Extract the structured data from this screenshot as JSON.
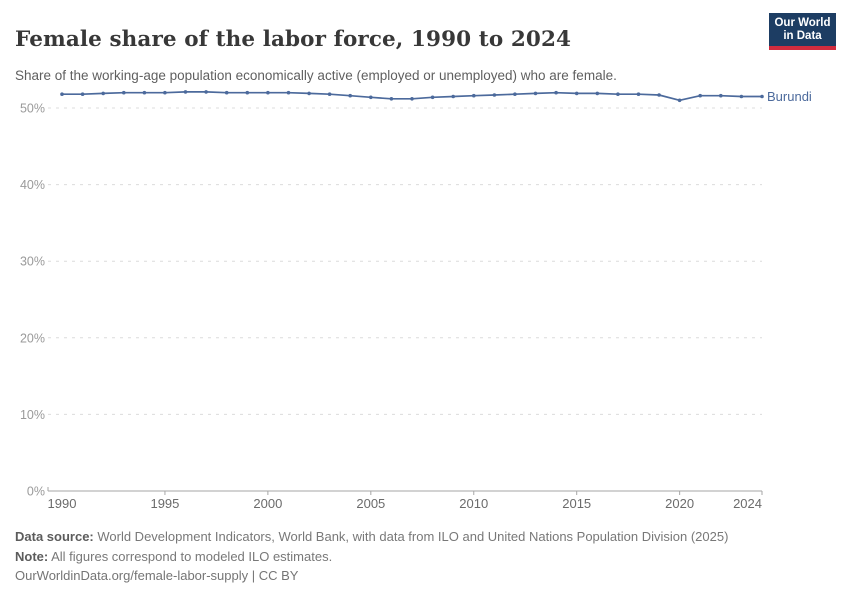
{
  "header": {
    "title": "Female share of the labor force, 1990 to 2024",
    "subtitle": "Share of the working-age population economically active (employed or unemployed) who are female.",
    "logo": {
      "line1": "Our World",
      "line2": "in Data",
      "bg_color": "#1d3d63",
      "stripe_color": "#d12c3e"
    }
  },
  "chart_data": {
    "type": "line",
    "title": "Female share of the labor force, 1990 to 2024",
    "xlabel": "",
    "ylabel": "",
    "xlim": [
      1990,
      2024
    ],
    "ylim": [
      0,
      53
    ],
    "grid": "dashed horizontal",
    "legend_position": "end-of-line label",
    "x_ticks": [
      1990,
      1995,
      2000,
      2005,
      2010,
      2015,
      2020,
      2024
    ],
    "y_ticks": [
      0,
      10,
      20,
      30,
      40,
      50
    ],
    "y_tick_suffix": "%",
    "series": [
      {
        "name": "Burundi",
        "color": "#4c6a9c",
        "x": [
          1990,
          1991,
          1992,
          1993,
          1994,
          1995,
          1996,
          1997,
          1998,
          1999,
          2000,
          2001,
          2002,
          2003,
          2004,
          2005,
          2006,
          2007,
          2008,
          2009,
          2010,
          2011,
          2012,
          2013,
          2014,
          2015,
          2016,
          2017,
          2018,
          2019,
          2020,
          2021,
          2022,
          2023,
          2024
        ],
        "values": [
          51.8,
          51.8,
          51.9,
          52.0,
          52.0,
          52.0,
          52.1,
          52.1,
          52.0,
          52.0,
          52.0,
          52.0,
          51.9,
          51.8,
          51.6,
          51.4,
          51.2,
          51.2,
          51.4,
          51.5,
          51.6,
          51.7,
          51.8,
          51.9,
          52.0,
          51.9,
          51.9,
          51.8,
          51.8,
          51.7,
          51.0,
          51.6,
          51.6,
          51.5,
          51.5
        ]
      }
    ],
    "colors": {
      "gridline": "#dcdcdc",
      "axis": "#a6a6a6",
      "y_tick_label": "#9a9a9a",
      "x_tick_label": "#6b6b6b"
    }
  },
  "footer": {
    "data_source_label": "Data source:",
    "data_source_text": " World Development Indicators, World Bank, with data from ILO and United Nations Population Division (2025)",
    "note_label": "Note:",
    "note_text": " All figures correspond to modeled ILO estimates.",
    "link_text": "OurWorldinData.org/female-labor-supply | CC BY"
  }
}
